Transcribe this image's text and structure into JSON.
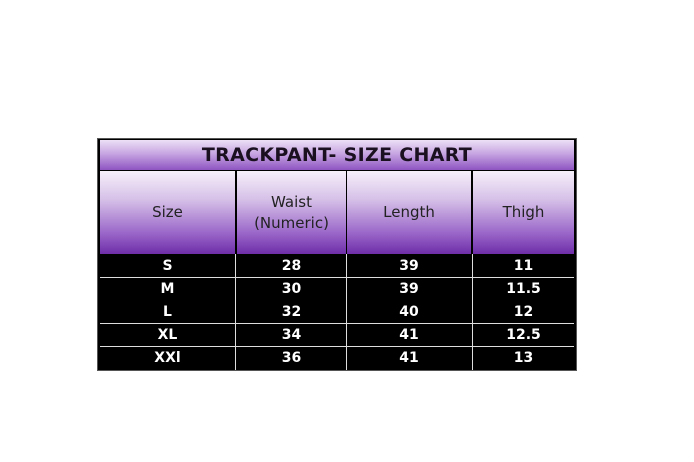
{
  "title": "TRACKPANT- SIZE CHART",
  "headers": [
    "Size",
    "Waist (Numeric)",
    "Length",
    "Thigh"
  ],
  "rows": [
    [
      "S",
      "28",
      "39",
      "11"
    ],
    [
      "M",
      "30",
      "39",
      "11.5"
    ],
    [
      "L",
      "32",
      "40",
      "12"
    ],
    [
      "XL",
      "34",
      "41",
      "12.5"
    ],
    [
      "XXl",
      "36",
      "41",
      "13"
    ]
  ],
  "colors": {
    "header_purple": "#7b3fb0",
    "body": "#000000",
    "text": "#ffffff"
  }
}
